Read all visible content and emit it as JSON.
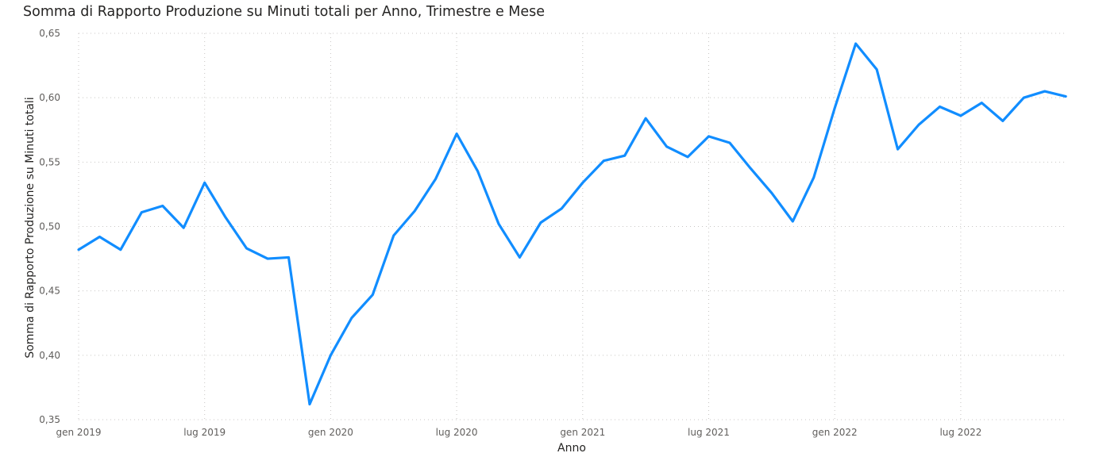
{
  "chart_data": {
    "type": "line",
    "title": "Somma di Rapporto Produzione su Minuti totali per Anno, Trimestre e Mese",
    "xlabel": "Anno",
    "ylabel": "Somma di Rapporto Produzione su Minuti totali",
    "x_ticks": [
      {
        "month_index": 0,
        "label": "gen 2019"
      },
      {
        "month_index": 6,
        "label": "lug 2019"
      },
      {
        "month_index": 12,
        "label": "gen 2020"
      },
      {
        "month_index": 18,
        "label": "lug 2020"
      },
      {
        "month_index": 24,
        "label": "gen 2021"
      },
      {
        "month_index": 30,
        "label": "lug 2021"
      },
      {
        "month_index": 36,
        "label": "gen 2022"
      },
      {
        "month_index": 42,
        "label": "lug 2022"
      }
    ],
    "y_ticks": [
      0.35,
      0.4,
      0.45,
      0.5,
      0.55,
      0.6,
      0.65
    ],
    "y_tick_labels": [
      "0,35",
      "0,40",
      "0,45",
      "0,50",
      "0,55",
      "0,60",
      "0,65"
    ],
    "ylim": [
      0.35,
      0.65
    ],
    "xlim": [
      "gen 2019",
      "dic 2022"
    ],
    "grid": true,
    "series": [
      {
        "color": "#118dff",
        "x": [
          "gen 2019",
          "feb 2019",
          "mar 2019",
          "apr 2019",
          "mag 2019",
          "giu 2019",
          "lug 2019",
          "ago 2019",
          "set 2019",
          "ott 2019",
          "nov 2019",
          "dic 2019",
          "gen 2020",
          "feb 2020",
          "mar 2020",
          "apr 2020",
          "mag 2020",
          "giu 2020",
          "lug 2020",
          "ago 2020",
          "set 2020",
          "ott 2020",
          "nov 2020",
          "dic 2020",
          "gen 2021",
          "feb 2021",
          "mar 2021",
          "apr 2021",
          "mag 2021",
          "giu 2021",
          "lug 2021",
          "ago 2021",
          "set 2021",
          "ott 2021",
          "nov 2021",
          "dic 2021",
          "gen 2022",
          "feb 2022",
          "mar 2022",
          "apr 2022",
          "mag 2022",
          "giu 2022",
          "lug 2022",
          "ago 2022",
          "set 2022",
          "ott 2022",
          "nov 2022",
          "dic 2022"
        ],
        "values": [
          0.482,
          0.492,
          0.482,
          0.511,
          0.516,
          0.499,
          0.534,
          0.507,
          0.483,
          0.475,
          0.476,
          0.362,
          0.4,
          0.429,
          0.447,
          0.493,
          0.512,
          0.537,
          0.572,
          0.543,
          0.502,
          0.476,
          0.503,
          0.514,
          0.534,
          0.551,
          0.555,
          0.584,
          0.562,
          0.554,
          0.57,
          0.565,
          0.545,
          0.526,
          0.504,
          0.538,
          0.592,
          0.642,
          0.622,
          0.56,
          0.579,
          0.593,
          0.586,
          0.596,
          0.582,
          0.6,
          0.605,
          0.601
        ]
      }
    ]
  }
}
